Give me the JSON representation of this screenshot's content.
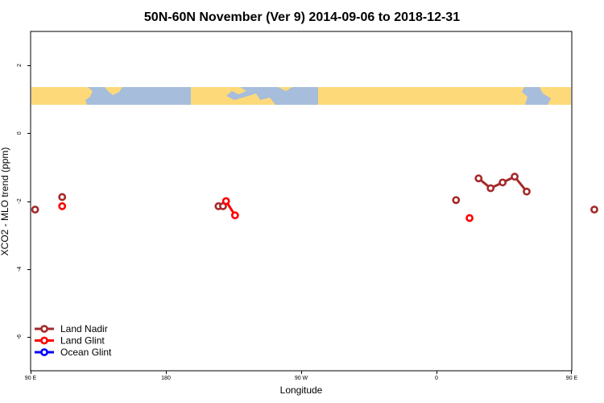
{
  "chart_data": {
    "type": "line",
    "title": "50N-60N November (Ver 9)   2014-09-06 to 2018-12-31",
    "xlabel": "Longitude",
    "ylabel": "XCO2 - MLO trend (ppm)",
    "xlim": [
      90,
      450
    ],
    "ylim": [
      -7,
      3
    ],
    "x_ticks": [
      {
        "value": 90,
        "label": "90 E"
      },
      {
        "value": 180,
        "label": "180"
      },
      {
        "value": 270,
        "label": "90 W"
      },
      {
        "value": 360,
        "label": "0"
      },
      {
        "value": 450,
        "label": "90 E"
      },
      {
        "value": 540,
        "label": "180"
      }
    ],
    "y_ticks": [
      {
        "value": 2,
        "label": "2"
      },
      {
        "value": 0,
        "label": "0"
      },
      {
        "value": -2,
        "label": "-2"
      },
      {
        "value": -4,
        "label": "-4"
      },
      {
        "value": -6,
        "label": "-6"
      }
    ],
    "map_strip": {
      "lat_range": "50N-60N",
      "ocean_color": "#A6BDDB",
      "land_color": "#FDD97A"
    },
    "legend_position": "bottom-left",
    "series": [
      {
        "name": "Land Nadir",
        "color": "#A52A2A",
        "points": [
          [
            93,
            -2.25
          ],
          [
            111,
            -1.88
          ],
          [
            215,
            -2.15
          ],
          [
            218,
            -2.15
          ],
          [
            373,
            -1.97
          ],
          [
            388,
            -1.33
          ],
          [
            396,
            -1.62
          ],
          [
            404,
            -1.45
          ],
          [
            412,
            -1.28
          ],
          [
            420,
            -1.72
          ],
          [
            465,
            -2.25
          ],
          [
            483,
            -1.88
          ]
        ],
        "segments": [
          [
            388,
            396,
            404,
            412,
            420
          ]
        ]
      },
      {
        "name": "Land Glint",
        "color": "#FF0000",
        "points": [
          [
            111,
            -2.15
          ],
          [
            220,
            -2.0
          ],
          [
            226,
            -2.42
          ],
          [
            382,
            -2.5
          ],
          [
            483,
            -2.15
          ]
        ],
        "segments": [
          [
            220,
            226
          ]
        ]
      },
      {
        "name": "Ocean Glint",
        "color": "#0000FF",
        "points": [],
        "segments": []
      }
    ]
  }
}
